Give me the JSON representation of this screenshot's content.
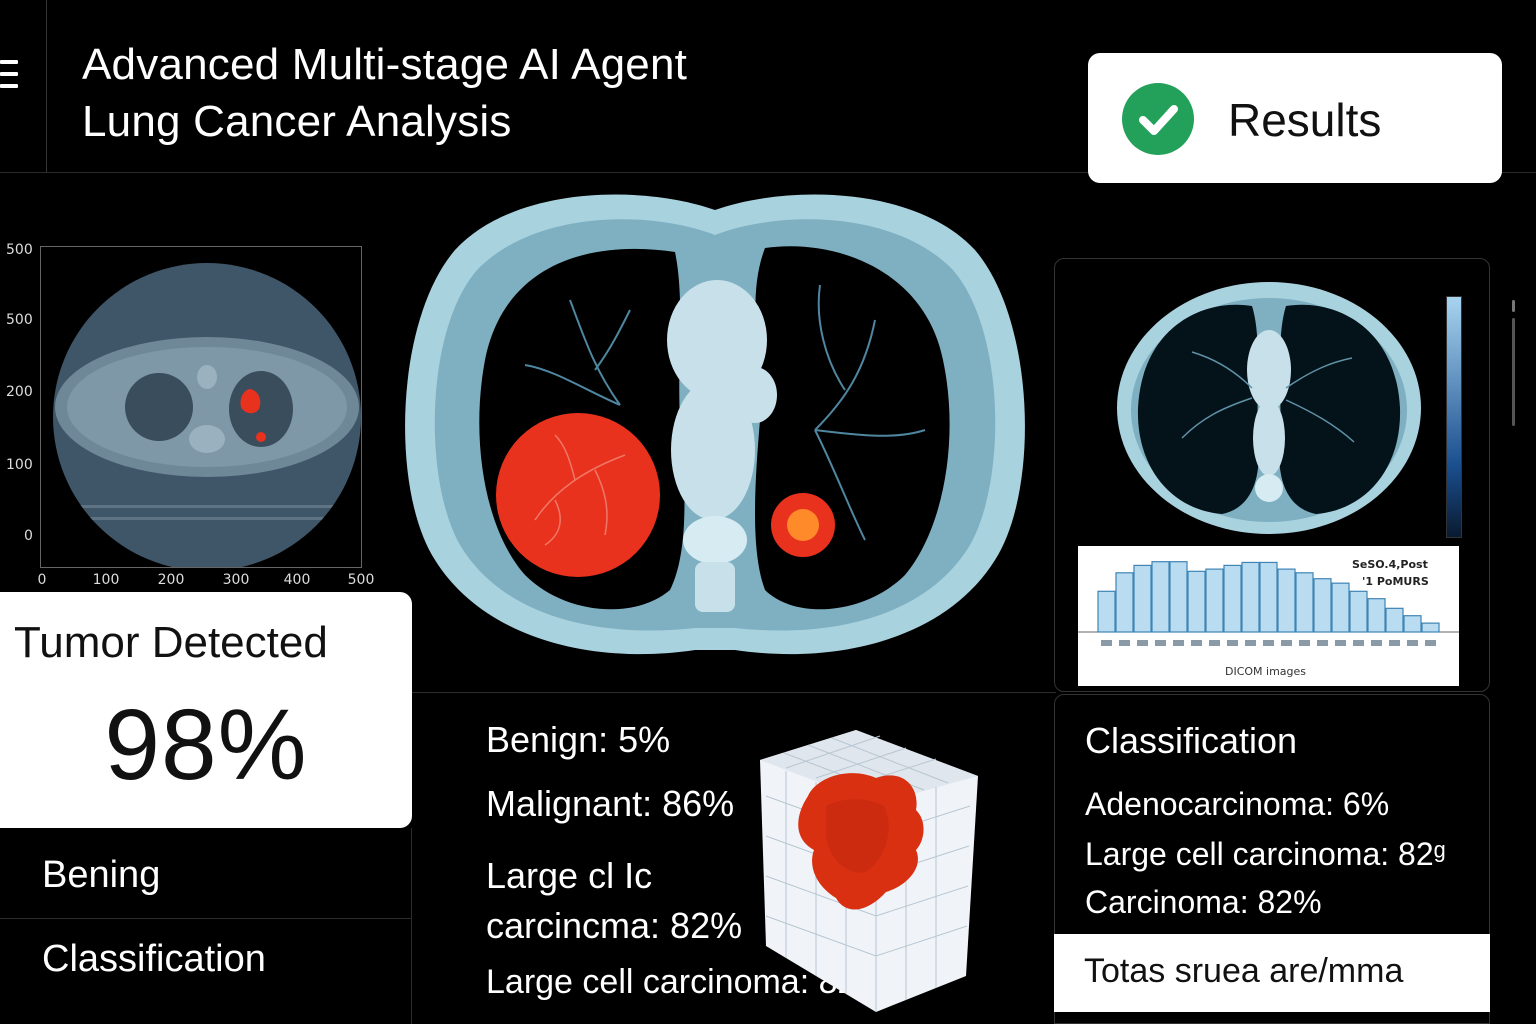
{
  "header": {
    "title_line1": "Advanced Multi-stage AI Agent",
    "title_line2": "Lung Cancer Analysis",
    "results_label": "Results"
  },
  "plot": {
    "y_ticks": [
      "500",
      "500",
      "200",
      "100",
      "0"
    ],
    "x_ticks": [
      "0",
      "100",
      "200",
      "300",
      "400",
      "500"
    ]
  },
  "tumor_card": {
    "title": "Tumor Detected",
    "value": "98%"
  },
  "left_list": {
    "items": [
      "Bening",
      "Classification"
    ]
  },
  "center_results": {
    "benign": "Benign: 5%",
    "malignant": "Malignant: 86%",
    "large_cell_line1": "Large cl Ic",
    "large_cell_line2": "carcincma: 82%",
    "large_cell_full": "Large cell carcinoma: 82%"
  },
  "histogram": {
    "legend_line1": "SeSO.4,Post",
    "legend_line2": "'1 PoMURS",
    "xlabel": "DICOM images",
    "bar_values": [
      0.55,
      0.8,
      0.9,
      0.95,
      0.95,
      0.82,
      0.85,
      0.9,
      0.94,
      0.94,
      0.85,
      0.8,
      0.72,
      0.66,
      0.55,
      0.45,
      0.32,
      0.22,
      0.12
    ]
  },
  "classification": {
    "title": "Classification",
    "items": [
      "Adenocarcinoma: 6%",
      "Large cell carcinoma: 82ᶢ",
      "Carcinoma: 82%"
    ],
    "footer": "Totas sruea are/mma"
  },
  "colors": {
    "tumor_red": "#e8321e",
    "ct_bone": "#a9d2df",
    "success_green": "#23a15a"
  }
}
